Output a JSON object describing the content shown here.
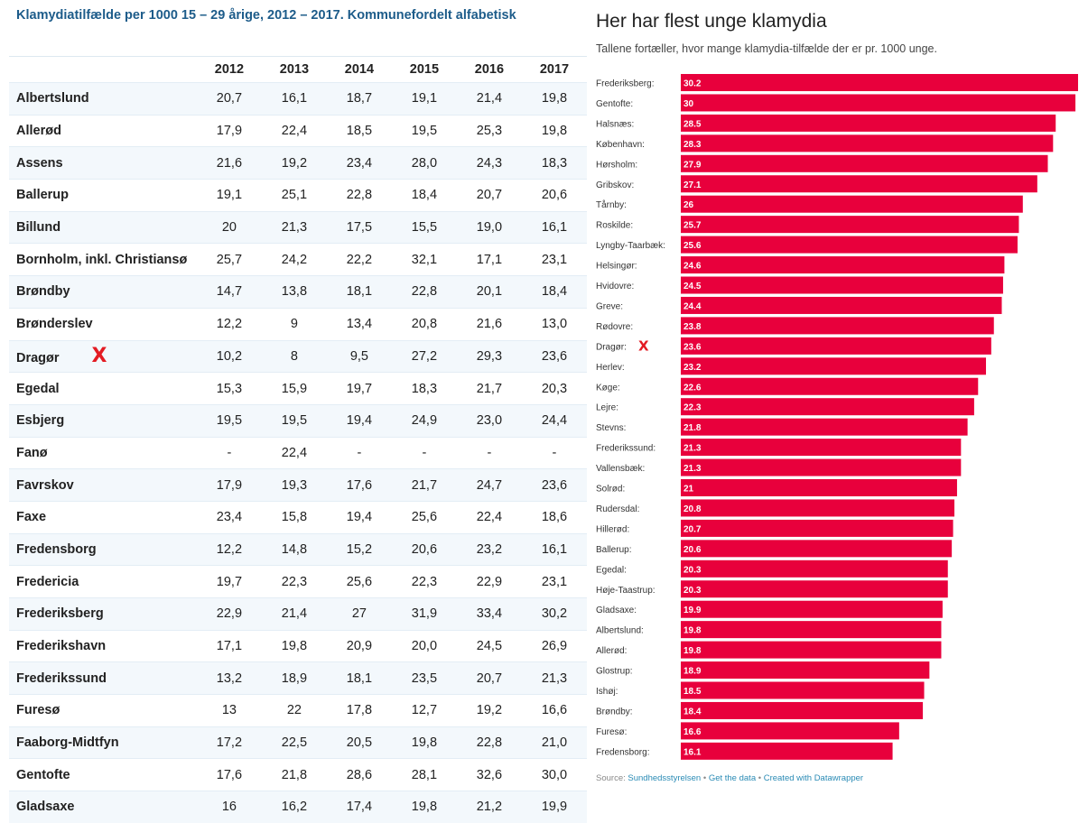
{
  "left": {
    "title": "Klamydiatilfælde per 1000 15 – 29 årige, 2012 – 2017. Kommunefordelt alfabetisk",
    "years": [
      "2012",
      "2013",
      "2014",
      "2015",
      "2016",
      "2017"
    ],
    "rows": [
      {
        "name": "Albertslund",
        "v": [
          "20,7",
          "16,1",
          "18,7",
          "19,1",
          "21,4",
          "19,8"
        ]
      },
      {
        "name": "Allerød",
        "v": [
          "17,9",
          "22,4",
          "18,5",
          "19,5",
          "25,3",
          "19,8"
        ]
      },
      {
        "name": "Assens",
        "v": [
          "21,6",
          "19,2",
          "23,4",
          "28,0",
          "24,3",
          "18,3"
        ]
      },
      {
        "name": "Ballerup",
        "v": [
          "19,1",
          "25,1",
          "22,8",
          "18,4",
          "20,7",
          "20,6"
        ]
      },
      {
        "name": "Billund",
        "v": [
          "20",
          "21,3",
          "17,5",
          "15,5",
          "19,0",
          "16,1"
        ]
      },
      {
        "name": "Bornholm, inkl. Christiansø",
        "v": [
          "25,7",
          "24,2",
          "22,2",
          "32,1",
          "17,1",
          "23,1"
        ]
      },
      {
        "name": "Brøndby",
        "v": [
          "14,7",
          "13,8",
          "18,1",
          "22,8",
          "20,1",
          "18,4"
        ]
      },
      {
        "name": "Brønderslev",
        "v": [
          "12,2",
          "9",
          "13,4",
          "20,8",
          "21,6",
          "13,0"
        ]
      },
      {
        "name": "Dragør",
        "v": [
          "10,2",
          "8",
          "9,5",
          "27,2",
          "29,3",
          "23,6"
        ],
        "mark": "X"
      },
      {
        "name": "Egedal",
        "v": [
          "15,3",
          "15,9",
          "19,7",
          "18,3",
          "21,7",
          "20,3"
        ]
      },
      {
        "name": "Esbjerg",
        "v": [
          "19,5",
          "19,5",
          "19,4",
          "24,9",
          "23,0",
          "24,4"
        ]
      },
      {
        "name": "Fanø",
        "v": [
          "-",
          "22,4",
          "-",
          "-",
          "-",
          "-"
        ]
      },
      {
        "name": "Favrskov",
        "v": [
          "17,9",
          "19,3",
          "17,6",
          "21,7",
          "24,7",
          "23,6"
        ]
      },
      {
        "name": "Faxe",
        "v": [
          "23,4",
          "15,8",
          "19,4",
          "25,6",
          "22,4",
          "18,6"
        ]
      },
      {
        "name": "Fredensborg",
        "v": [
          "12,2",
          "14,8",
          "15,2",
          "20,6",
          "23,2",
          "16,1"
        ]
      },
      {
        "name": "Fredericia",
        "v": [
          "19,7",
          "22,3",
          "25,6",
          "22,3",
          "22,9",
          "23,1"
        ]
      },
      {
        "name": "Frederiksberg",
        "v": [
          "22,9",
          "21,4",
          "27",
          "31,9",
          "33,4",
          "30,2"
        ]
      },
      {
        "name": "Frederikshavn",
        "v": [
          "17,1",
          "19,8",
          "20,9",
          "20,0",
          "24,5",
          "26,9"
        ]
      },
      {
        "name": "Frederikssund",
        "v": [
          "13,2",
          "18,9",
          "18,1",
          "23,5",
          "20,7",
          "21,3"
        ]
      },
      {
        "name": "Furesø",
        "v": [
          "13",
          "22",
          "17,8",
          "12,7",
          "19,2",
          "16,6"
        ]
      },
      {
        "name": "Faaborg-Midtfyn",
        "v": [
          "17,2",
          "22,5",
          "20,5",
          "19,8",
          "22,8",
          "21,0"
        ]
      },
      {
        "name": "Gentofte",
        "v": [
          "17,6",
          "21,8",
          "28,6",
          "28,1",
          "32,6",
          "30,0"
        ]
      },
      {
        "name": "Gladsaxe",
        "v": [
          "16",
          "16,2",
          "17,4",
          "19,8",
          "21,2",
          "19,9"
        ]
      }
    ]
  },
  "right": {
    "title": "Her har flest unge klamydia",
    "subtitle": "Tallene fortæller, hvor mange klamydia-tilfælde der er pr. 1000 unge.",
    "footer": {
      "source_label": "Source:",
      "source": "Sundhedsstyrelsen",
      "sep1": "•",
      "get_data": "Get the data",
      "sep2": "•",
      "created": "Created with Datawrapper"
    }
  },
  "colors": {
    "bar": "#e8003c",
    "bar_label": "#ffffff",
    "mark": "#e31b23",
    "title_blue": "#1d5c8a"
  },
  "chart_data": {
    "type": "bar",
    "orientation": "horizontal",
    "title": "Her har flest unge klamydia",
    "subtitle": "Tallene fortæller, hvor mange klamydia-tilfælde der er pr. 1000 unge.",
    "xlim": [
      0,
      30.2
    ],
    "categories": [
      "Frederiksberg:",
      "Gentofte:",
      "Halsnæs:",
      "København:",
      "Hørsholm:",
      "Gribskov:",
      "Tårnby:",
      "Roskilde:",
      "Lyngby-Taarbæk:",
      "Helsingør:",
      "Hvidovre:",
      "Greve:",
      "Rødovre:",
      "Dragør:",
      "Herlev:",
      "Køge:",
      "Lejre:",
      "Stevns:",
      "Frederikssund:",
      "Vallensbæk:",
      "Solrød:",
      "Rudersdal:",
      "Hillerød:",
      "Ballerup:",
      "Egedal:",
      "Høje-Taastrup:",
      "Gladsaxe:",
      "Albertslund:",
      "Allerød:",
      "Glostrup:",
      "Ishøj:",
      "Brøndby:",
      "Furesø:",
      "Fredensborg:"
    ],
    "values": [
      30.2,
      30,
      28.5,
      28.3,
      27.9,
      27.1,
      26,
      25.7,
      25.6,
      24.6,
      24.5,
      24.4,
      23.8,
      23.6,
      23.2,
      22.6,
      22.3,
      21.8,
      21.3,
      21.3,
      21,
      20.8,
      20.7,
      20.6,
      20.3,
      20.3,
      19.9,
      19.8,
      19.8,
      18.9,
      18.5,
      18.4,
      16.6,
      16.1
    ],
    "value_labels": [
      "30.2",
      "30",
      "28.5",
      "28.3",
      "27.9",
      "27.1",
      "26",
      "25.7",
      "25.6",
      "24.6",
      "24.5",
      "24.4",
      "23.8",
      "23.6",
      "23.2",
      "22.6",
      "22.3",
      "21.8",
      "21.3",
      "21.3",
      "21",
      "20.8",
      "20.7",
      "20.6",
      "20.3",
      "20.3",
      "19.9",
      "19.8",
      "19.8",
      "18.9",
      "18.5",
      "18.4",
      "16.6",
      "16.1"
    ],
    "marked_index": 13,
    "mark": "X"
  }
}
